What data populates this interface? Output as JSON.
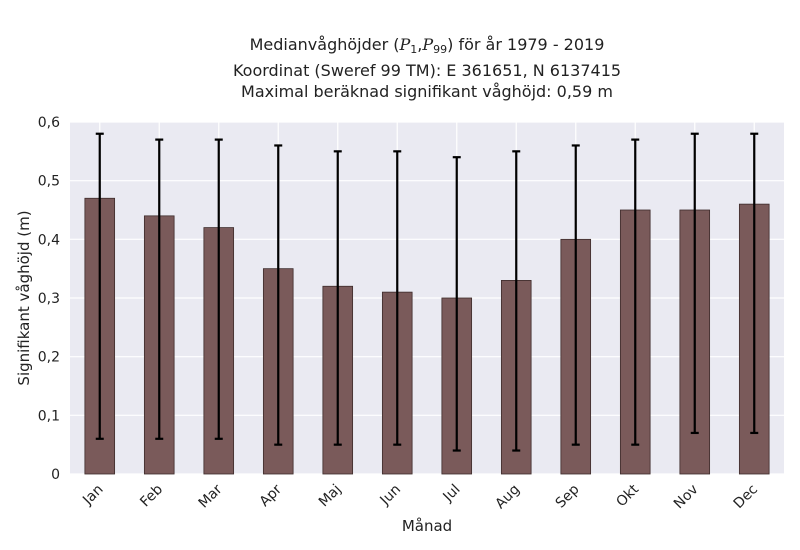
{
  "chart_data": {
    "type": "bar",
    "title_prefix": "Medianvåghöjder (",
    "title_p1_letter": "P",
    "title_p1_sub": "1",
    "title_sep": ",",
    "title_p2_letter": "P",
    "title_p2_sub": "99",
    "title_suffix": ") för år 1979 - 2019",
    "subtitle": "Koordinat (Sweref 99 TM): E 361651, N 6137415",
    "subtitle2": "Maximal beräknad signifikant våghöjd: 0,59 m",
    "xlabel": "Månad",
    "ylabel": "Signifikant våghöjd (m)",
    "ylim": [
      0,
      0.6
    ],
    "yticks": [
      0,
      0.1,
      0.2,
      0.3,
      0.4,
      0.5,
      0.6
    ],
    "ytick_labels": [
      "0",
      "0,1",
      "0,2",
      "0,3",
      "0,4",
      "0,5",
      "0,6"
    ],
    "categories": [
      "Jan",
      "Feb",
      "Mar",
      "Apr",
      "Maj",
      "Jun",
      "Jul",
      "Aug",
      "Sep",
      "Okt",
      "Nov",
      "Dec"
    ],
    "values": [
      0.47,
      0.44,
      0.42,
      0.35,
      0.32,
      0.31,
      0.3,
      0.33,
      0.4,
      0.45,
      0.45,
      0.46
    ],
    "p1": [
      0.06,
      0.06,
      0.06,
      0.05,
      0.05,
      0.05,
      0.04,
      0.04,
      0.05,
      0.05,
      0.07,
      0.07
    ],
    "p99": [
      0.58,
      0.57,
      0.57,
      0.56,
      0.55,
      0.55,
      0.54,
      0.55,
      0.56,
      0.57,
      0.58,
      0.58
    ],
    "grid": true,
    "colors": {
      "bar": "#7a5a5a",
      "bar_edge": "#3d2b2b",
      "errorbar": "#000000",
      "plot_bg": "#eaeaf2",
      "grid": "#ffffff"
    }
  }
}
